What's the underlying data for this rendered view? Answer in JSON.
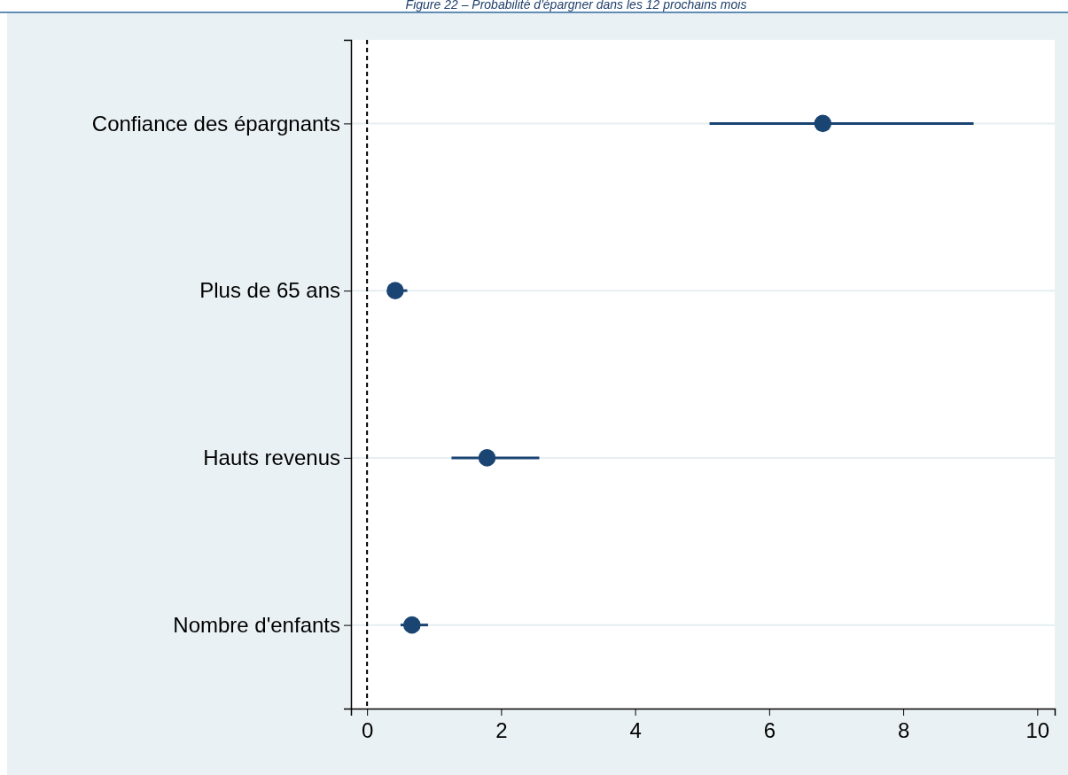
{
  "chart_data": {
    "type": "scatter",
    "orientation": "horizontal",
    "title": "Figure 22 – Probabilité d'épargner dans les 12 prochains mois",
    "categories": [
      "Confiance des épargnants",
      "Plus de 65 ans",
      "Hauts revenus",
      "Nombre d'enfants"
    ],
    "values": [
      6.8,
      0.42,
      1.79,
      0.67
    ],
    "errors": [
      [
        5.11,
        9.05
      ],
      [
        0.42,
        0.6
      ],
      [
        1.26,
        2.57
      ],
      [
        0.5,
        0.91
      ]
    ],
    "color": "#1a4472",
    "marker": "circle",
    "xlim": [
      -0.24,
      10.26
    ],
    "xticks": [
      0,
      2,
      4,
      6,
      8,
      10
    ],
    "grid": "y",
    "ref_lines": [
      {
        "axis": "x",
        "value": 0,
        "line_style": "dashed",
        "color": "#000000"
      }
    ]
  }
}
